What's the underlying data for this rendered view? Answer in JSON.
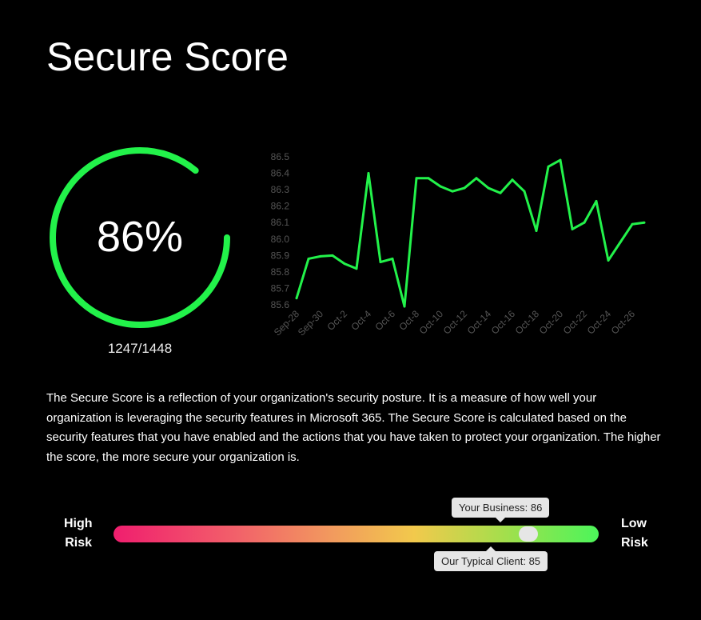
{
  "page_title": "Secure Score",
  "gauge": {
    "percent_label": "86%",
    "fraction_label": "1247/1448",
    "percent": 86,
    "color": "#22f24a"
  },
  "description": "The Secure Score is a reflection of your organization's security posture. It is a measure of how well your organization is leveraging the security features in Microsoft 365. The Secure Score is calculated based on the security features that you have enabled and the actions that you have taken to protect your organization. The higher the score, the more secure your organization is.",
  "risk": {
    "high_label_1": "High",
    "high_label_2": "Risk",
    "low_label_1": "Low",
    "low_label_2": "Risk",
    "your_business_label": "Your Business: 86",
    "typical_client_label": "Our Typical Client: 85",
    "position_percent": 86
  },
  "chart_data": {
    "type": "line",
    "x": [
      "Sep-28",
      "Sep-29",
      "Sep-30",
      "Oct-1",
      "Oct-2",
      "Oct-3",
      "Oct-4",
      "Oct-5",
      "Oct-6",
      "Oct-7",
      "Oct-8",
      "Oct-9",
      "Oct-10",
      "Oct-11",
      "Oct-12",
      "Oct-13",
      "Oct-14",
      "Oct-15",
      "Oct-16",
      "Oct-17",
      "Oct-18",
      "Oct-19",
      "Oct-20",
      "Oct-21",
      "Oct-22",
      "Oct-23",
      "Oct-24",
      "Oct-25",
      "Oct-26",
      "Oct-27"
    ],
    "values": [
      85.64,
      85.88,
      85.895,
      85.9,
      85.85,
      85.82,
      86.4,
      85.86,
      85.88,
      85.59,
      86.37,
      86.37,
      86.32,
      86.29,
      86.31,
      86.37,
      86.31,
      86.28,
      86.36,
      86.29,
      86.05,
      86.44,
      86.48,
      86.06,
      86.1,
      86.23,
      85.87,
      85.98,
      86.09,
      86.1
    ],
    "x_tick_labels": [
      "Sep-28",
      "Sep-30",
      "Oct-2",
      "Oct-4",
      "Oct-6",
      "Oct-8",
      "Oct-10",
      "Oct-12",
      "Oct-14",
      "Oct-16",
      "Oct-18",
      "Oct-20",
      "Oct-22",
      "Oct-24",
      "Oct-26"
    ],
    "y_tick_labels": [
      "85.6",
      "85.7",
      "85.8",
      "85.9",
      "86.0",
      "86.1",
      "86.2",
      "86.3",
      "86.4",
      "86.5"
    ],
    "ylim": [
      85.6,
      86.5
    ],
    "grid": false,
    "line_color": "#22f24a",
    "tick_color": "#555555"
  }
}
